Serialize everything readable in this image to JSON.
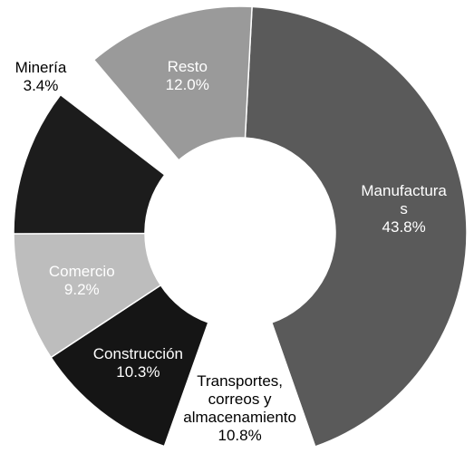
{
  "chart_data": {
    "type": "donut",
    "categories": [
      "Manufacturas",
      "Transportes, correos y almacenamiento",
      "Construcción",
      "Comercio",
      null,
      "Minería",
      "Resto"
    ],
    "values": [
      43.8,
      10.8,
      10.3,
      9.2,
      10.5,
      3.4,
      12.0
    ],
    "value_labels": [
      "43.8%",
      "10.8%",
      "10.3%",
      "9.2%",
      null,
      "3.4%",
      "12.0%"
    ],
    "colors": [
      "#5a5a5a",
      "#ffffff",
      "#151515",
      "#bdbdbd",
      "#1c1c1c",
      "#ffffff",
      "#9a9a9a"
    ],
    "exploded": [
      "Minería"
    ]
  }
}
